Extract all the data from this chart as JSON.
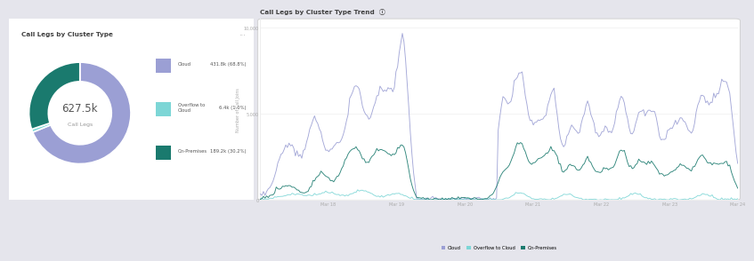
{
  "donut_title": "Call Legs by Cluster Type",
  "donut_info": "ⓘ",
  "donut_center_value": "627.5k",
  "donut_center_label": "Call Legs",
  "donut_slices": [
    431.8,
    6.4,
    189.2
  ],
  "donut_labels": [
    "Cloud",
    "Overflow to\nCloud",
    "On-Premises"
  ],
  "donut_values_str": [
    "431.8k (68.8%)",
    "6.4k (1.0%)",
    "189.2k (30.2%)"
  ],
  "donut_colors": [
    "#9b9fd4",
    "#7dd6d6",
    "#1a7a6e"
  ],
  "line_title": "Call Legs by Cluster Type Trend",
  "line_ylabel": "Number of Call Joins",
  "line_xticks": [
    "Mar 18",
    "Mar 19",
    "Mar 20",
    "Mar 21",
    "Mar 22",
    "Mar 23",
    "Mar 24"
  ],
  "line_ytick_vals": [
    0,
    5000,
    10000
  ],
  "line_ytick_labels": [
    "0",
    "5,000",
    "10,000"
  ],
  "line_colors": [
    "#9b9fd4",
    "#7dd6d6",
    "#1a7a6e"
  ],
  "line_legend": [
    "Cloud",
    "Overflow to Cloud",
    "On-Premises"
  ],
  "outer_bg": "#e5e5ec",
  "panel_bg": "#ffffff",
  "title_color": "#404040",
  "axis_color": "#aaaaaa",
  "grid_color": "#eeeeee"
}
